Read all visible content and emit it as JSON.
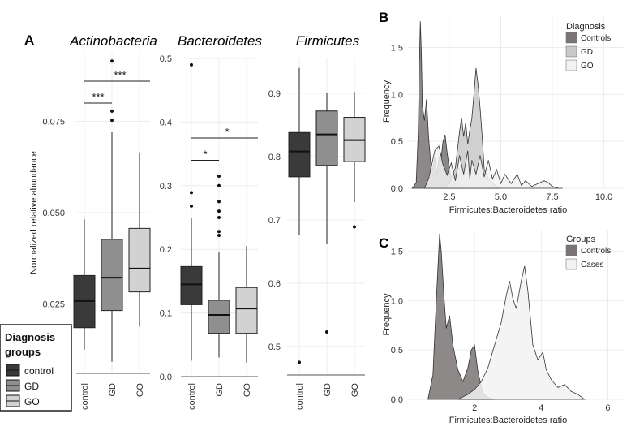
{
  "panel_a": {
    "letter": "A",
    "y_axis_title": "Normalized relative abundance",
    "legend": {
      "title": "Diagnosis groups",
      "items": [
        {
          "label": "control",
          "color": "#3a3a3a"
        },
        {
          "label": "GD",
          "color": "#8f8f8f"
        },
        {
          "label": "GO",
          "color": "#d2d2d2"
        }
      ]
    }
  },
  "panel_b": {
    "letter": "B",
    "legend_title": "Diagnosis",
    "legend_items": [
      {
        "label": "Controls",
        "color": "#7a7474"
      },
      {
        "label": "GD",
        "color": "#c9c9c9"
      },
      {
        "label": "GO",
        "color": "#f2f2f2"
      }
    ]
  },
  "panel_c": {
    "letter": "C",
    "legend_title": "Groups",
    "legend_items": [
      {
        "label": "Controls",
        "color": "#7a7474"
      },
      {
        "label": "Cases",
        "color": "#f2f2f2"
      }
    ]
  },
  "chart_data": [
    {
      "type": "box",
      "title": "Actinobacteria",
      "ylabel": "Normalized relative abundance",
      "categories": [
        "control",
        "GD",
        "GO"
      ],
      "ylim": [
        0.006,
        0.094
      ],
      "yticks": [
        0.025,
        0.05,
        0.075
      ],
      "yticklabels": [
        "0.025",
        "0.050",
        "0.075"
      ],
      "boxes": [
        {
          "group": "control",
          "whisker_low": 0.0125,
          "q1": 0.0185,
          "median": 0.0258,
          "q3": 0.0328,
          "whisker_high": 0.0482,
          "outliers": []
        },
        {
          "group": "GD",
          "whisker_low": 0.0092,
          "q1": 0.0232,
          "median": 0.0322,
          "q3": 0.0427,
          "whisker_high": 0.072,
          "outliers": [
            0.0915,
            0.0778,
            0.0753
          ]
        },
        {
          "group": "GO",
          "whisker_low": 0.0188,
          "q1": 0.0283,
          "median": 0.0347,
          "q3": 0.0457,
          "whisker_high": 0.0665,
          "outliers": []
        }
      ],
      "significance": [
        {
          "from": "control",
          "to": "GD",
          "label": "***",
          "y": 0.08
        },
        {
          "from": "control",
          "to": "GO",
          "label": "***",
          "y": 0.086
        }
      ]
    },
    {
      "type": "box",
      "title": "Bacteroidetes",
      "categories": [
        "control",
        "GD",
        "GO"
      ],
      "ylim": [
        0.0,
        0.5
      ],
      "yticks": [
        0.0,
        0.1,
        0.2,
        0.3,
        0.4,
        0.5
      ],
      "yticklabels": [
        "0.0",
        "0.1",
        "0.2",
        "0.3",
        "0.4",
        "0.5"
      ],
      "boxes": [
        {
          "group": "control",
          "whisker_low": 0.025,
          "q1": 0.113,
          "median": 0.145,
          "q3": 0.173,
          "whisker_high": 0.25,
          "outliers": [
            0.49,
            0.289,
            0.268
          ]
        },
        {
          "group": "GD",
          "whisker_low": 0.03,
          "q1": 0.068,
          "median": 0.097,
          "q3": 0.12,
          "whisker_high": 0.195,
          "outliers": [
            0.315,
            0.3,
            0.275,
            0.26,
            0.25,
            0.228,
            0.222
          ]
        },
        {
          "group": "GO",
          "whisker_low": 0.022,
          "q1": 0.068,
          "median": 0.107,
          "q3": 0.14,
          "whisker_high": 0.205,
          "outliers": []
        }
      ],
      "significance": [
        {
          "from": "control",
          "to": "GD",
          "label": "*",
          "y": 0.34
        },
        {
          "from": "control",
          "to": "GO",
          "label": "*",
          "y": 0.375
        }
      ]
    },
    {
      "type": "box",
      "title": "Firmicutes",
      "categories": [
        "control",
        "GD",
        "GO"
      ],
      "ylim": [
        0.455,
        0.955
      ],
      "yticks": [
        0.5,
        0.6,
        0.7,
        0.8,
        0.9
      ],
      "yticklabels": [
        "0.5",
        "0.6",
        "0.7",
        "0.8",
        "0.9"
      ],
      "boxes": [
        {
          "group": "control",
          "whisker_low": 0.676,
          "q1": 0.768,
          "median": 0.808,
          "q3": 0.838,
          "whisker_high": 0.94,
          "outliers": [
            0.475
          ]
        },
        {
          "group": "GD",
          "whisker_low": 0.662,
          "q1": 0.786,
          "median": 0.835,
          "q3": 0.872,
          "whisker_high": 0.901,
          "outliers": [
            0.523
          ]
        },
        {
          "group": "GO",
          "whisker_low": 0.728,
          "q1": 0.792,
          "median": 0.826,
          "q3": 0.862,
          "whisker_high": 0.902,
          "outliers": [
            0.689
          ]
        }
      ]
    },
    {
      "type": "area",
      "panel": "B",
      "xlabel": "Firmicutes:Bacteroidetes ratio",
      "ylabel": "Frequency",
      "xlim": [
        0.5,
        11.0
      ],
      "ylim": [
        0.0,
        1.85
      ],
      "xticks": [
        2.5,
        5.0,
        7.5,
        10.0
      ],
      "xticklabels": [
        "2.5",
        "5.0",
        "7.5",
        "10.0"
      ],
      "yticks": [
        0.0,
        0.5,
        1.0,
        1.5
      ],
      "yticklabels": [
        "0.0",
        "0.5",
        "1.0",
        "1.5"
      ],
      "legend_title": "Diagnosis",
      "series": [
        {
          "name": "Controls",
          "color": "#7a7474",
          "x": [
            0.7,
            0.9,
            1.0,
            1.05,
            1.1,
            1.15,
            1.2,
            1.3,
            1.4,
            1.5,
            1.6,
            1.7,
            1.8,
            1.9,
            2.0,
            2.1,
            2.2,
            2.3,
            2.4,
            2.5,
            2.6,
            2.7,
            2.8,
            3.0,
            3.1
          ],
          "y": [
            0.0,
            0.06,
            0.6,
            1.3,
            1.78,
            1.45,
            0.88,
            0.72,
            0.95,
            0.55,
            0.28,
            0.2,
            0.33,
            0.15,
            0.33,
            0.3,
            0.5,
            0.57,
            0.38,
            0.22,
            0.12,
            0.05,
            0.15,
            0.02,
            0.0
          ]
        },
        {
          "name": "GD",
          "color": "#c9c9c9",
          "x": [
            2.2,
            2.5,
            2.8,
            3.0,
            3.1,
            3.2,
            3.3,
            3.4,
            3.5,
            3.6,
            3.7,
            3.8,
            3.9,
            4.0,
            4.1,
            4.2,
            4.4,
            4.6,
            4.8,
            5.0
          ],
          "y": [
            0.0,
            0.05,
            0.22,
            0.6,
            0.75,
            0.55,
            0.7,
            0.47,
            0.62,
            0.75,
            1.0,
            1.28,
            1.1,
            0.85,
            0.55,
            0.2,
            0.1,
            0.05,
            0.02,
            0.0
          ]
        },
        {
          "name": "GO",
          "color": "#f2f2f2",
          "x": [
            1.3,
            1.5,
            1.8,
            2.0,
            2.2,
            2.4,
            2.6,
            2.8,
            3.0,
            3.2,
            3.4,
            3.5,
            3.6,
            3.8,
            4.0,
            4.2,
            4.4,
            4.6,
            4.8,
            5.0,
            5.2,
            5.5,
            5.8,
            6.0,
            6.2,
            6.5,
            6.8,
            7.1,
            7.3,
            7.5,
            7.8,
            8.0
          ],
          "y": [
            0.0,
            0.1,
            0.4,
            0.45,
            0.25,
            0.14,
            0.27,
            0.08,
            0.35,
            0.15,
            0.4,
            0.1,
            0.3,
            0.15,
            0.35,
            0.12,
            0.3,
            0.1,
            0.2,
            0.05,
            0.15,
            0.05,
            0.15,
            0.03,
            0.08,
            0.02,
            0.05,
            0.08,
            0.06,
            0.02,
            0.0,
            0.0
          ]
        }
      ]
    },
    {
      "type": "area",
      "panel": "C",
      "xlabel": "Firmicutes:Bacteroidetes ratio",
      "ylabel": "Frequency",
      "xlim": [
        0.0,
        6.5
      ],
      "ylim": [
        0.0,
        1.72
      ],
      "xticks": [
        2,
        4,
        6
      ],
      "xticklabels": [
        "2",
        "4",
        "6"
      ],
      "yticks": [
        0.0,
        0.5,
        1.0,
        1.5
      ],
      "yticklabels": [
        "0.0",
        "0.5",
        "1.0",
        "1.5"
      ],
      "legend_title": "Groups",
      "series": [
        {
          "name": "Controls",
          "color": "#7a7474",
          "x": [
            0.6,
            0.75,
            0.85,
            0.95,
            1.0,
            1.08,
            1.15,
            1.25,
            1.35,
            1.5,
            1.65,
            1.8,
            1.9,
            2.0,
            2.1,
            2.25,
            2.4,
            2.6
          ],
          "y": [
            0.0,
            0.25,
            1.0,
            1.68,
            1.5,
            1.05,
            0.72,
            0.85,
            0.55,
            0.3,
            0.18,
            0.32,
            0.5,
            0.55,
            0.28,
            0.06,
            0.02,
            0.0
          ]
        },
        {
          "name": "Cases",
          "color": "#f2f2f2",
          "x": [
            1.5,
            1.8,
            2.0,
            2.2,
            2.4,
            2.6,
            2.8,
            2.95,
            3.05,
            3.15,
            3.25,
            3.4,
            3.5,
            3.6,
            3.75,
            3.9,
            4.05,
            4.15,
            4.3,
            4.5,
            4.7,
            4.9,
            5.1,
            5.3
          ],
          "y": [
            0.0,
            0.05,
            0.1,
            0.18,
            0.32,
            0.55,
            0.78,
            1.05,
            1.2,
            1.02,
            0.92,
            1.2,
            1.35,
            1.1,
            0.55,
            0.4,
            0.48,
            0.3,
            0.2,
            0.12,
            0.15,
            0.08,
            0.05,
            0.0
          ]
        }
      ]
    }
  ]
}
